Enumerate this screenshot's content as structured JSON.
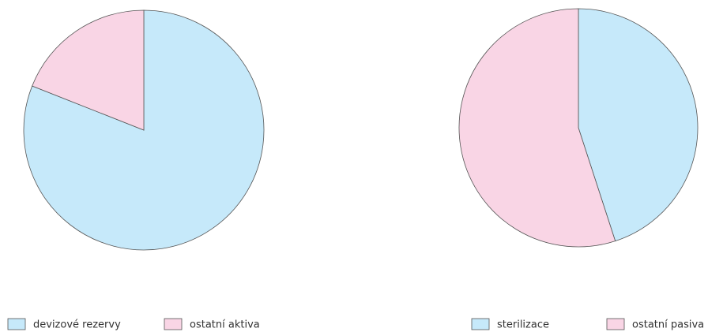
{
  "chart_data": [
    {
      "type": "pie",
      "categories": [
        "devizové rezervy",
        "ostatní aktiva"
      ],
      "values": [
        81,
        19
      ],
      "colors": [
        "#c6e9fa",
        "#f9d5e5"
      ],
      "legend": "bottom"
    },
    {
      "type": "pie",
      "categories": [
        "sterilizace",
        "ostatní pasiva"
      ],
      "values": [
        45,
        55
      ],
      "colors": [
        "#c6e9fa",
        "#f9d5e5"
      ],
      "legend": "bottom"
    }
  ]
}
